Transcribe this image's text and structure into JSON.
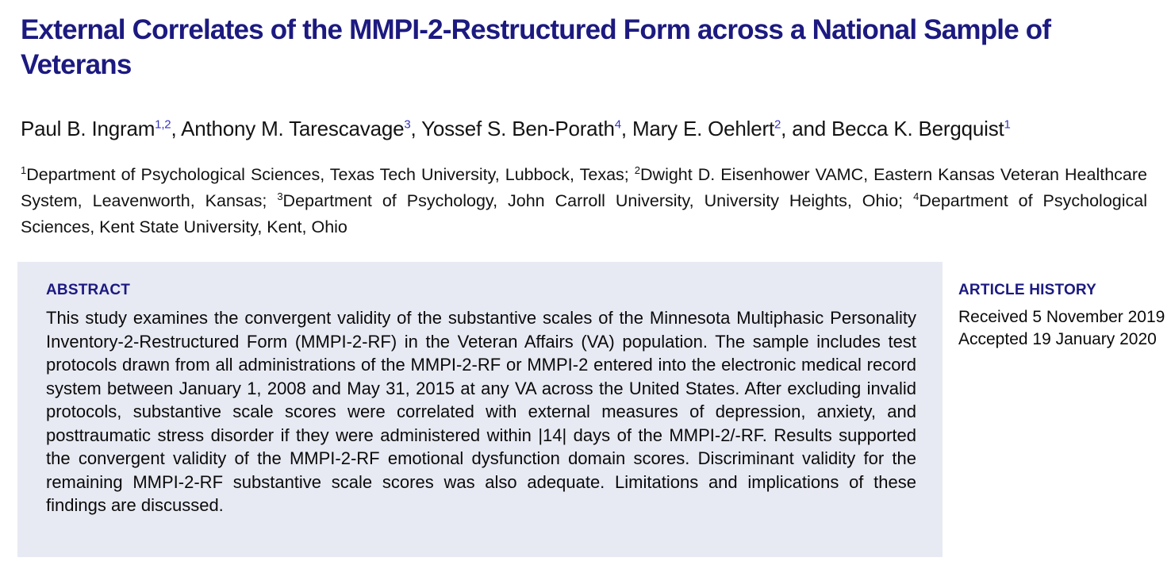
{
  "paper": {
    "title": "External Correlates of the MMPI-2-Restructured Form across a National Sample of Veterans"
  },
  "authors": [
    {
      "name": "Paul B. Ingram",
      "sup": "1,2",
      "sep": ", "
    },
    {
      "name": "Anthony M. Tarescavage",
      "sup": "3",
      "sep": ", "
    },
    {
      "name": "Yossef S. Ben-Porath",
      "sup": "4",
      "sep": ", "
    },
    {
      "name": "Mary E. Oehlert",
      "sup": "2",
      "sep": ", and "
    },
    {
      "name": "Becca K. Bergquist",
      "sup": "1",
      "sep": ""
    }
  ],
  "affiliations": [
    {
      "sup": "1",
      "text": "Department of Psychological Sciences, Texas Tech University, Lubbock, Texas; "
    },
    {
      "sup": "2",
      "text": "Dwight D. Eisenhower VAMC, Eastern Kansas Veteran Healthcare System, Leavenworth, Kansas; "
    },
    {
      "sup": "3",
      "text": "Department of Psychology, John Carroll University, University Heights, Ohio; "
    },
    {
      "sup": "4",
      "text": "Department of Psychological Sciences, Kent State University, Kent, Ohio"
    }
  ],
  "abstract": {
    "label": "ABSTRACT",
    "text": "This study examines the convergent validity of the substantive scales of the Minnesota Multiphasic Personality Inventory-2-Restructured Form (MMPI-2-RF) in the Veteran Affairs (VA) population. The sample includes test protocols drawn from all administrations of the MMPI-2-RF or MMPI-2 entered into the electronic medical record system between January 1, 2008 and May 31, 2015 at any VA across the United States. After excluding invalid protocols, substantive scale scores were correlated with external measures of depression, anxiety, and posttraumatic stress disorder if they were administered within |14| days of the MMPI-2/-RF. Results supported the convergent validity of the MMPI-2-RF emotional dysfunction domain scores. Discriminant validity for the remaining MMPI-2-RF substantive scale scores was also adequate. Limitations and implications of these findings are discussed."
  },
  "article_history": {
    "label": "ARTICLE HISTORY",
    "received": "Received 5 November 2019",
    "accepted": "Accepted 19 January 2020"
  },
  "colors": {
    "heading_navy": "#1c1a80",
    "author_superscript_blue": "#3434bd",
    "abstract_background": "#e8eaf3",
    "body_text": "#0a0a0a"
  }
}
